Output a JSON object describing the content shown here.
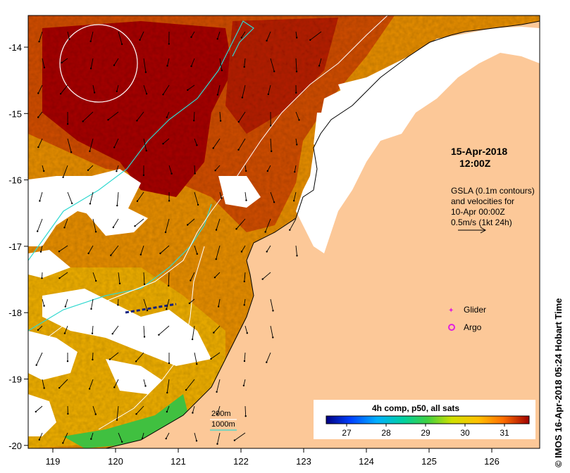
{
  "map": {
    "x_ticks": [
      "119",
      "120",
      "121",
      "122",
      "123",
      "124",
      "125",
      "126"
    ],
    "y_ticks": [
      "-14",
      "-15",
      "-16",
      "-17",
      "-18",
      "-19",
      "-20"
    ],
    "date": "15-Apr-2018",
    "time": "12:00Z",
    "gsla_lines": [
      "GSLA (0.1m contours)",
      "and velocities for",
      "10-Apr 00:00Z",
      "0.5m/s (1kt 24h)"
    ],
    "legend": {
      "glider": "Glider",
      "argo": "Argo",
      "depth_200": "200m",
      "depth_1000": "1000m"
    },
    "colorbar": {
      "title": "4h comp, p50, all sats",
      "ticks": [
        "27",
        "28",
        "29",
        "30",
        "31"
      ]
    },
    "credit": "© IMOS 16-Apr-2018 05:24 Hobart Time",
    "colors": {
      "land": "#fcc898",
      "warm_deep": "#a80000",
      "warm": "#d25000",
      "mid": "#e89000",
      "cool": "#f0c000",
      "green": "#40c040",
      "contour_200": "#30d8d0",
      "contour_1000": "#ffffff",
      "glider": "#e020e0",
      "argo": "#e020e0"
    }
  }
}
